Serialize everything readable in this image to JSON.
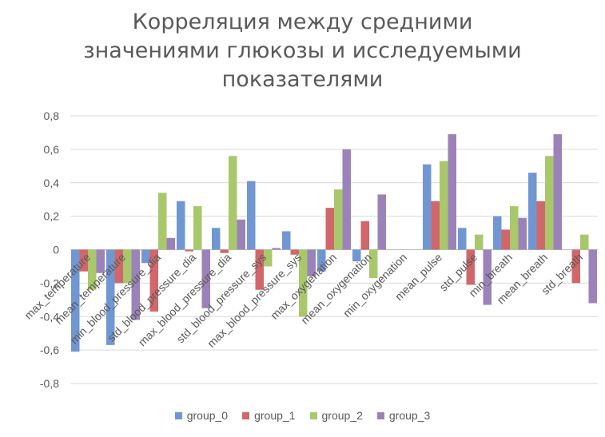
{
  "chart_data": {
    "type": "bar",
    "title_lines": [
      "Корреляция между средними",
      "значениями глюкозы и исследуемыми",
      "показателями"
    ],
    "xlabel": "",
    "ylabel": "",
    "ylim": [
      -0.8,
      0.8
    ],
    "y_ticks": [
      "-0,8",
      "-0,6",
      "-0,4",
      "-0,2",
      "0",
      "0,2",
      "0,4",
      "0,6",
      "0,8"
    ],
    "y_tick_values": [
      -0.8,
      -0.6,
      -0.4,
      -0.2,
      0,
      0.2,
      0.4,
      0.6,
      0.8
    ],
    "grid": true,
    "legend_position": "bottom",
    "categories": [
      "max_temperature",
      "mean_temperature",
      "min_blood_pressure_dia",
      "std_blood_pressure_dia",
      "max_blood_pressure_dia",
      "std_blood_pressure_sys",
      "max_blood_pressure_sys",
      "max_oxygenation",
      "mean_oxygenation",
      "min_oxygenation",
      "mean_pulse",
      "std_pulse",
      "min_breath",
      "mean_breath",
      "std_breath"
    ],
    "series": [
      {
        "name": "group_0",
        "color": "#7097d2",
        "values": [
          -0.61,
          -0.57,
          -0.08,
          0.29,
          0.13,
          0.41,
          0.11,
          -0.13,
          -0.07,
          0.0,
          0.51,
          0.13,
          0.2,
          0.46,
          0.0
        ]
      },
      {
        "name": "group_1",
        "color": "#d0676a",
        "values": [
          -0.13,
          -0.2,
          -0.37,
          -0.01,
          -0.02,
          -0.24,
          -0.03,
          0.25,
          0.17,
          0.0,
          0.29,
          -0.21,
          0.12,
          0.29,
          -0.2
        ]
      },
      {
        "name": "group_2",
        "color": "#a9c86c",
        "values": [
          -0.24,
          -0.2,
          0.34,
          0.26,
          0.56,
          -0.1,
          -0.4,
          0.36,
          -0.17,
          0.0,
          0.53,
          0.09,
          0.26,
          0.56,
          0.09
        ]
      },
      {
        "name": "group_3",
        "color": "#9b83ba",
        "values": [
          -0.14,
          -0.42,
          0.07,
          -0.35,
          0.18,
          0.01,
          -0.16,
          0.6,
          0.33,
          0.0,
          0.69,
          -0.33,
          0.19,
          0.69,
          -0.32
        ]
      }
    ]
  }
}
